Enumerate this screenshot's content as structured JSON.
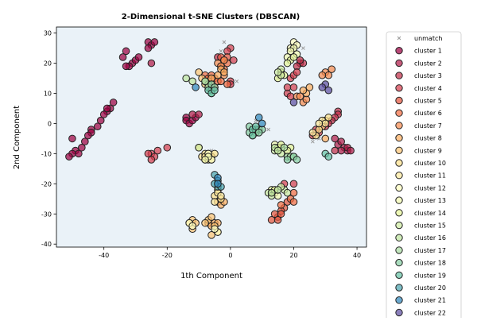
{
  "chart_data": {
    "type": "scatter",
    "title": "2-Dimensional t-SNE Clusters (DBSCAN)",
    "xlabel": "1th Component",
    "ylabel": "2nd Component",
    "xlim": [
      -55,
      43
    ],
    "ylim": [
      -41,
      32
    ],
    "xticks": [
      -40,
      -20,
      0,
      20,
      40
    ],
    "yticks": [
      -40,
      -30,
      -20,
      -10,
      0,
      10,
      20,
      30
    ],
    "grid": false,
    "background_color": "#eaf2f8",
    "legend_position": "right",
    "legend_items_shown": 23,
    "series": [
      {
        "name": "unmatch",
        "marker": "x",
        "color": "#999999",
        "points": [
          [
            -2,
            27
          ],
          [
            -3,
            24
          ],
          [
            23,
            25
          ],
          [
            20,
            26
          ],
          [
            8,
            1
          ],
          [
            12,
            -2
          ],
          [
            -6,
            -9
          ],
          [
            26,
            -6
          ],
          [
            28,
            -5
          ],
          [
            19,
            -9
          ],
          [
            2,
            14
          ],
          [
            15,
            15
          ],
          [
            -4,
            -23
          ],
          [
            -14,
            1
          ]
        ]
      },
      {
        "name": "cluster 1",
        "color": "#9e0142",
        "points": [
          [
            -26,
            27
          ],
          [
            -25,
            26
          ],
          [
            -26,
            25
          ],
          [
            -24,
            27
          ],
          [
            -31,
            20
          ],
          [
            -30,
            21
          ],
          [
            -32,
            19
          ],
          [
            -33,
            19
          ],
          [
            -34,
            22
          ],
          [
            -33,
            24
          ],
          [
            -29,
            22
          ],
          [
            -38,
            5
          ],
          [
            -39,
            4
          ],
          [
            -40,
            3
          ],
          [
            -39,
            5
          ],
          [
            -37,
            7
          ],
          [
            -41,
            1
          ],
          [
            -42,
            -1
          ],
          [
            -44,
            -2
          ],
          [
            -44,
            -3
          ],
          [
            -45,
            -4
          ],
          [
            -46,
            -6
          ],
          [
            -47,
            -8
          ],
          [
            -49,
            -9
          ],
          [
            -48,
            -10
          ],
          [
            -50,
            -10
          ],
          [
            -51,
            -11
          ],
          [
            -50,
            -5
          ],
          [
            -14,
            2
          ],
          [
            -14,
            1
          ],
          [
            -13,
            0
          ],
          [
            -12,
            1
          ],
          [
            -11,
            2
          ]
        ]
      },
      {
        "name": "cluster 2",
        "color": "#b11c49",
        "points": [
          [
            -25,
            20
          ],
          [
            -12,
            3
          ],
          [
            -10,
            3
          ],
          [
            33,
            -5
          ],
          [
            34,
            -7
          ],
          [
            35,
            -6
          ],
          [
            36,
            -8
          ],
          [
            37,
            -9
          ],
          [
            35,
            -9
          ],
          [
            37,
            -8
          ],
          [
            38,
            -9
          ]
        ]
      },
      {
        "name": "cluster 3",
        "color": "#c22f4a",
        "points": [
          [
            22,
            20
          ],
          [
            23,
            20
          ],
          [
            22,
            21
          ],
          [
            21,
            19
          ],
          [
            34,
            4
          ],
          [
            34,
            3
          ],
          [
            33,
            2
          ],
          [
            32,
            1
          ],
          [
            31,
            0
          ],
          [
            30,
            -1
          ],
          [
            33,
            -9
          ],
          [
            -4,
            22
          ]
        ]
      },
      {
        "name": "cluster 4",
        "color": "#d53e4f",
        "points": [
          [
            0,
            25
          ],
          [
            -1,
            24
          ],
          [
            1,
            21
          ],
          [
            0,
            14
          ],
          [
            0,
            13
          ],
          [
            18,
            10
          ],
          [
            19,
            9
          ],
          [
            18,
            12
          ],
          [
            19,
            15
          ],
          [
            20,
            16
          ],
          [
            21,
            17
          ],
          [
            20,
            12
          ],
          [
            -25,
            -10
          ],
          [
            -24,
            -11
          ],
          [
            -26,
            -10
          ],
          [
            -23,
            -9
          ],
          [
            -25,
            -12
          ],
          [
            -20,
            -8
          ],
          [
            29,
            -1
          ],
          [
            28,
            -3
          ],
          [
            27,
            -2
          ],
          [
            26,
            -4
          ],
          [
            17,
            -20
          ],
          [
            20,
            -20
          ]
        ]
      },
      {
        "name": "cluster 5",
        "color": "#e4563f",
        "points": [
          [
            -1,
            22
          ],
          [
            -3,
            22
          ],
          [
            18,
            -26
          ],
          [
            17,
            -28
          ],
          [
            16,
            -29
          ],
          [
            15,
            -31
          ],
          [
            14,
            -30
          ],
          [
            13,
            -32
          ],
          [
            15,
            -32
          ],
          [
            16,
            -30
          ]
        ]
      },
      {
        "name": "cluster 6",
        "color": "#f46d43",
        "points": [
          [
            -2,
            21
          ],
          [
            -1,
            20
          ],
          [
            -3,
            19
          ],
          [
            -2,
            18
          ],
          [
            -8,
            16
          ],
          [
            -7,
            15
          ],
          [
            -6,
            16
          ],
          [
            -5,
            15
          ],
          [
            -4,
            14
          ],
          [
            -3,
            14
          ],
          [
            -1,
            13
          ],
          [
            20,
            -23
          ],
          [
            19,
            -25
          ],
          [
            20,
            -26
          ],
          [
            16,
            -27
          ]
        ]
      },
      {
        "name": "cluster 7",
        "color": "#f88c51",
        "points": [
          [
            -2,
            21
          ],
          [
            -4,
            20
          ],
          [
            -3,
            19
          ],
          [
            -2,
            16
          ],
          [
            -6,
            13
          ],
          [
            -5,
            12
          ],
          [
            23,
            7
          ],
          [
            24,
            8
          ],
          [
            21,
            9
          ],
          [
            22,
            9
          ],
          [
            30,
            17
          ],
          [
            31,
            16
          ],
          [
            32,
            18
          ],
          [
            29,
            16
          ]
        ]
      },
      {
        "name": "cluster 8",
        "color": "#fdae61",
        "points": [
          [
            -3,
            18
          ],
          [
            -2,
            17
          ],
          [
            -4,
            16
          ],
          [
            -6,
            15
          ],
          [
            -8,
            14
          ],
          [
            24,
            10
          ],
          [
            25,
            12
          ],
          [
            23,
            11
          ],
          [
            30,
            -5
          ],
          [
            -4,
            -26
          ],
          [
            -3,
            -27
          ],
          [
            -2,
            -26
          ],
          [
            -7,
            -33
          ],
          [
            -6,
            -34
          ],
          [
            -5,
            -33
          ],
          [
            -4,
            -33
          ]
        ]
      },
      {
        "name": "cluster 9",
        "color": "#fdc574",
        "points": [
          [
            -10,
            17
          ],
          [
            -9,
            15
          ],
          [
            -8,
            13
          ],
          [
            -12,
            -32
          ],
          [
            -11,
            -33
          ],
          [
            -13,
            -33
          ],
          [
            -12,
            -35
          ],
          [
            -7,
            -32
          ],
          [
            -6,
            -31
          ],
          [
            -8,
            -33
          ],
          [
            -5,
            -34
          ],
          [
            -4,
            -36
          ],
          [
            -6,
            -37
          ]
        ]
      },
      {
        "name": "cluster 10",
        "color": "#fee08b",
        "points": [
          [
            29,
            -1
          ],
          [
            30,
            1
          ],
          [
            28,
            -2
          ],
          [
            27,
            -4
          ],
          [
            31,
            2
          ],
          [
            -10,
            -8
          ],
          [
            -9,
            -11
          ],
          [
            -8,
            -12
          ],
          [
            -7,
            -12
          ],
          [
            -6,
            -11
          ],
          [
            -5,
            -10
          ],
          [
            -8,
            -10
          ],
          [
            -5,
            -24
          ],
          [
            -4,
            -22
          ],
          [
            -3,
            -25
          ]
        ]
      },
      {
        "name": "cluster 11",
        "color": "#fee99d",
        "points": [
          [
            29,
            1
          ],
          [
            30,
            0
          ],
          [
            28,
            0
          ],
          [
            26,
            -3
          ],
          [
            -8,
            -11
          ],
          [
            -7,
            -10
          ],
          [
            -6,
            -12
          ],
          [
            -4,
            -23
          ],
          [
            -5,
            -26
          ],
          [
            -3,
            -24
          ]
        ]
      },
      {
        "name": "cluster 12",
        "color": "#ffffbf",
        "points": [
          [
            20,
            27
          ],
          [
            21,
            26
          ],
          [
            19,
            25
          ],
          [
            -7,
            -10
          ],
          [
            -6,
            -12
          ],
          [
            -4,
            -36
          ],
          [
            -5,
            -35
          ],
          [
            -13,
            -33
          ],
          [
            -12,
            -34
          ]
        ]
      },
      {
        "name": "cluster 13",
        "color": "#f2f9b0",
        "points": [
          [
            20,
            25
          ],
          [
            19,
            24
          ],
          [
            21,
            23
          ],
          [
            18,
            22
          ],
          [
            -7,
            -11
          ],
          [
            -8,
            -12
          ],
          [
            15,
            -9
          ],
          [
            16,
            -8
          ],
          [
            14,
            -7
          ],
          [
            14,
            -23
          ],
          [
            15,
            -24
          ]
        ]
      },
      {
        "name": "cluster 14",
        "color": "#e6f598",
        "points": [
          [
            19,
            21
          ],
          [
            18,
            20
          ],
          [
            20,
            22
          ],
          [
            16,
            17
          ],
          [
            15,
            15
          ],
          [
            17,
            16
          ],
          [
            15,
            -8
          ],
          [
            16,
            -7
          ],
          [
            19,
            -8
          ],
          [
            18,
            -9
          ],
          [
            13,
            -22
          ],
          [
            14,
            -22
          ]
        ]
      },
      {
        "name": "cluster 15",
        "color": "#cfeca2",
        "points": [
          [
            16,
            18
          ],
          [
            16,
            16
          ],
          [
            15,
            17
          ],
          [
            -10,
            -8
          ],
          [
            14,
            -9
          ],
          [
            16,
            -10
          ],
          [
            12,
            -23
          ],
          [
            13,
            -24
          ],
          [
            17,
            -22
          ],
          [
            18,
            -23
          ],
          [
            16,
            -21
          ]
        ]
      },
      {
        "name": "cluster 16",
        "color": "#bee5a0",
        "points": [
          [
            -14,
            15
          ],
          [
            -12,
            14
          ],
          [
            -8,
            14
          ],
          [
            -7,
            13
          ],
          [
            14,
            -8
          ],
          [
            15,
            -9
          ],
          [
            13,
            -23
          ],
          [
            15,
            -22
          ]
        ]
      },
      {
        "name": "cluster 17",
        "color": "#abdda4",
        "points": [
          [
            -8,
            14
          ],
          [
            -7,
            12
          ],
          [
            -6,
            11
          ],
          [
            17,
            -8
          ],
          [
            18,
            -11
          ],
          [
            19,
            -11
          ],
          [
            20,
            -11
          ],
          [
            8,
            -3
          ],
          [
            7,
            -4
          ],
          [
            9,
            -2
          ]
        ]
      },
      {
        "name": "cluster 18",
        "color": "#88cfa4",
        "points": [
          [
            -6,
            13
          ],
          [
            -5,
            12
          ],
          [
            -6,
            10
          ],
          [
            6,
            -1
          ],
          [
            8,
            -2
          ],
          [
            10,
            -2
          ],
          [
            9,
            -3
          ],
          [
            6,
            -3
          ],
          [
            18,
            -12
          ],
          [
            20,
            -11
          ],
          [
            21,
            -12
          ]
        ]
      },
      {
        "name": "cluster 19",
        "color": "#66c2a5",
        "points": [
          [
            -7,
            11
          ],
          [
            -6,
            10
          ],
          [
            -5,
            11
          ],
          [
            30,
            -10
          ],
          [
            31,
            -11
          ],
          [
            7,
            -2
          ],
          [
            8,
            -1
          ],
          [
            7,
            -4
          ]
        ]
      },
      {
        "name": "cluster 20",
        "color": "#4ca5b0",
        "points": [
          [
            -5,
            -17
          ],
          [
            -4,
            -19
          ],
          [
            -4,
            -20
          ],
          [
            -4,
            -21
          ],
          [
            -5,
            -20
          ],
          [
            -3,
            -21
          ]
        ]
      },
      {
        "name": "cluster 21",
        "color": "#3288bd",
        "points": [
          [
            -11,
            12
          ],
          [
            9,
            2
          ],
          [
            10,
            0
          ],
          [
            -4,
            -18
          ],
          [
            -4,
            -20
          ]
        ]
      },
      {
        "name": "cluster 22",
        "color": "#5e4fa2",
        "points": [
          [
            20,
            7
          ],
          [
            30,
            13
          ],
          [
            31,
            11
          ],
          [
            29,
            12
          ]
        ]
      }
    ]
  }
}
